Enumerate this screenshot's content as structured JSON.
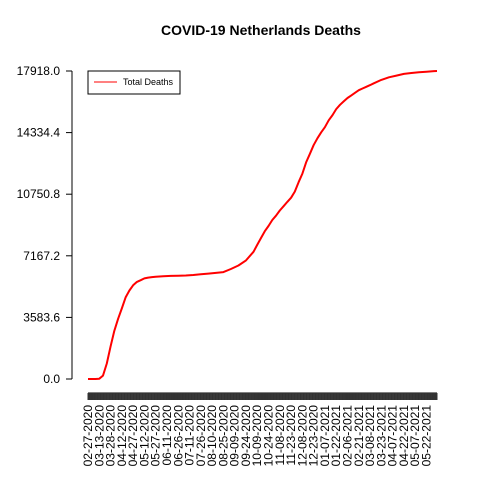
{
  "chart_data": {
    "type": "line",
    "title": "COVID-19 Netherlands Deaths",
    "xlabel": "",
    "ylabel": "",
    "ylim": [
      0,
      17918
    ],
    "y_ticks": [
      "0.0",
      "3583.6",
      "7167.2",
      "10750.8",
      "14334.4",
      "17918.0"
    ],
    "y_tick_values": [
      0,
      3583.6,
      7167.2,
      10750.8,
      14334.4,
      17918
    ],
    "x_tick_labels": [
      "02-27-2020",
      "03-13-2020",
      "03-28-2020",
      "04-12-2020",
      "04-27-2020",
      "05-12-2020",
      "05-27-2020",
      "06-11-2020",
      "06-26-2020",
      "07-11-2020",
      "07-26-2020",
      "08-10-2020",
      "08-25-2020",
      "09-09-2020",
      "09-24-2020",
      "10-09-2020",
      "10-24-2020",
      "11-08-2020",
      "11-23-2020",
      "12-08-2020",
      "12-23-2020",
      "01-07-2021",
      "01-22-2021",
      "02-06-2021",
      "02-21-2021",
      "03-08-2021",
      "03-23-2021",
      "04-07-2021",
      "04-22-2021",
      "05-07-2021",
      "05-22-2021"
    ],
    "x_range_days": [
      0,
      464
    ],
    "grid": false,
    "legend_position": "top-left",
    "series": [
      {
        "name": "Total Deaths",
        "color": "#ff0000",
        "x_days": [
          0,
          10,
          15,
          20,
          25,
          30,
          35,
          40,
          45,
          50,
          55,
          60,
          65,
          70,
          75,
          80,
          85,
          90,
          100,
          110,
          120,
          130,
          140,
          150,
          160,
          170,
          180,
          190,
          200,
          210,
          220,
          225,
          230,
          235,
          240,
          245,
          250,
          255,
          260,
          265,
          270,
          275,
          280,
          285,
          290,
          295,
          300,
          305,
          310,
          315,
          320,
          325,
          330,
          335,
          340,
          345,
          350,
          355,
          360,
          365,
          370,
          375,
          380,
          390,
          400,
          410,
          420,
          430,
          440,
          450,
          460,
          464
        ],
        "values": [
          0,
          0,
          20,
          200,
          900,
          1900,
          2800,
          3500,
          4100,
          4750,
          5150,
          5450,
          5650,
          5750,
          5850,
          5900,
          5930,
          5950,
          5980,
          6000,
          6010,
          6020,
          6050,
          6090,
          6130,
          6170,
          6220,
          6400,
          6600,
          6900,
          7400,
          7800,
          8200,
          8600,
          8900,
          9250,
          9500,
          9800,
          10050,
          10300,
          10550,
          10900,
          11450,
          11950,
          12600,
          13100,
          13600,
          14000,
          14350,
          14650,
          15050,
          15350,
          15700,
          15950,
          16150,
          16350,
          16500,
          16650,
          16800,
          16900,
          17000,
          17100,
          17200,
          17400,
          17550,
          17650,
          17750,
          17800,
          17850,
          17880,
          17910,
          17918
        ]
      }
    ]
  }
}
